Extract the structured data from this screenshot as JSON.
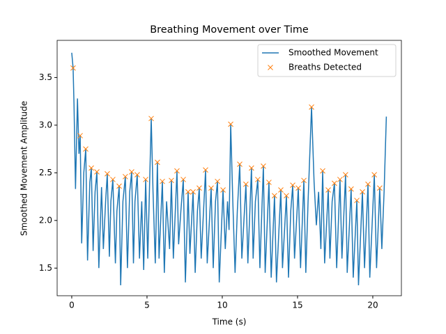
{
  "chart_data": {
    "type": "line",
    "title": "Breathing Movement over Time",
    "x_label": "Time (s)",
    "y_label": "Smoothed Movement Amplitude",
    "xlim": [
      -0.97,
      21.9
    ],
    "ylim": [
      1.21,
      3.89
    ],
    "xticks": [
      0,
      5,
      10,
      15,
      20
    ],
    "yticks": [
      1.5,
      {
        "value": 2,
        "label": "2.0"
      },
      2.5,
      {
        "value": 3,
        "label": "3.0"
      },
      3.5
    ],
    "legend": "upper right",
    "grid": false,
    "series": [
      {
        "name": "Smoothed Movement",
        "type": "line",
        "color": "#1f77b4",
        "x": [
          0,
          0.09,
          0.15,
          0.25,
          0.38,
          0.48,
          0.56,
          0.66,
          0.8,
          0.93,
          1.05,
          1.2,
          1.3,
          1.42,
          1.55,
          1.67,
          1.8,
          1.98,
          2.1,
          2.25,
          2.36,
          2.5,
          2.6,
          2.73,
          2.9,
          3.0,
          3.15,
          3.25,
          3.4,
          3.56,
          3.7,
          3.85,
          3.98,
          4.1,
          4.2,
          4.35,
          4.5,
          4.65,
          4.78,
          4.91,
          5.05,
          5.28,
          5.4,
          5.55,
          5.69,
          5.8,
          6.02,
          6.15,
          6.3,
          6.5,
          6.62,
          6.75,
          6.99,
          7.1,
          7.25,
          7.41,
          7.55,
          7.73,
          7.85,
          8.06,
          8.2,
          8.35,
          8.47,
          8.6,
          8.89,
          9.0,
          9.26,
          9.4,
          9.55,
          9.68,
          9.8,
          10.05,
          10.2,
          10.35,
          10.45,
          10.56,
          10.7,
          10.85,
          11.0,
          11.16,
          11.3,
          11.57,
          11.7,
          11.94,
          12.05,
          12.2,
          12.36,
          12.5,
          12.73,
          12.85,
          13.1,
          13.25,
          13.47,
          13.6,
          13.89,
          14.0,
          14.26,
          14.4,
          14.55,
          14.68,
          14.8,
          15.05,
          15.2,
          15.42,
          15.55,
          15.7,
          15.93,
          16.1,
          16.25,
          16.4,
          16.55,
          16.67,
          16.8,
          17.04,
          17.15,
          17.3,
          17.45,
          17.6,
          17.82,
          17.95,
          18.19,
          18.3,
          18.56,
          18.7,
          18.94,
          19.05,
          19.31,
          19.45,
          19.68,
          19.8,
          20.1,
          20.25,
          20.46,
          20.6,
          20.75,
          20.9
        ],
        "values": [
          3.76,
          3.6,
          3.22,
          2.33,
          3.28,
          2.7,
          2.89,
          1.76,
          2.5,
          2.75,
          1.58,
          2.4,
          2.55,
          1.68,
          2.3,
          2.51,
          1.5,
          2.35,
          1.7,
          2.2,
          2.49,
          1.62,
          2.2,
          2.43,
          1.55,
          2.1,
          2.36,
          1.32,
          2.2,
          2.46,
          1.5,
          2.3,
          2.51,
          1.55,
          2.2,
          2.48,
          1.6,
          2.2,
          1.48,
          2.43,
          1.6,
          3.07,
          2.3,
          1.55,
          2.61,
          1.6,
          2.41,
          1.45,
          2.2,
          1.7,
          2.42,
          1.6,
          2.52,
          1.75,
          2.1,
          2.43,
          1.35,
          2.3,
          1.65,
          2.3,
          1.45,
          2.1,
          2.34,
          1.6,
          2.53,
          1.55,
          2.34,
          1.5,
          2.2,
          2.41,
          1.35,
          2.32,
          1.7,
          2.2,
          1.9,
          3.01,
          2.2,
          1.45,
          2.1,
          2.59,
          1.6,
          2.38,
          1.55,
          2.55,
          1.6,
          2.2,
          2.43,
          1.5,
          2.57,
          1.45,
          2.4,
          1.4,
          2.26,
          1.35,
          2.32,
          1.5,
          2.26,
          1.4,
          2.1,
          2.37,
          1.6,
          2.34,
          1.5,
          2.42,
          1.45,
          2.2,
          3.19,
          2.4,
          1.95,
          2.3,
          1.7,
          2.52,
          1.55,
          2.32,
          1.6,
          2.2,
          2.39,
          1.5,
          2.43,
          1.6,
          2.48,
          1.45,
          2.33,
          1.4,
          2.21,
          1.32,
          2.3,
          1.5,
          2.38,
          1.4,
          2.48,
          1.5,
          2.34,
          1.7,
          2.3,
          3.09
        ]
      },
      {
        "name": "Breaths Detected",
        "type": "scatter",
        "marker": "x",
        "color": "#ff7f0e",
        "x": [
          0.09,
          0.56,
          0.93,
          1.3,
          1.67,
          2.36,
          2.73,
          3.15,
          3.56,
          3.98,
          4.35,
          4.91,
          5.28,
          5.69,
          6.02,
          6.62,
          6.99,
          7.41,
          7.73,
          8.06,
          8.47,
          8.89,
          9.26,
          9.68,
          10.05,
          10.56,
          11.16,
          11.57,
          11.94,
          12.36,
          12.73,
          13.1,
          13.47,
          13.89,
          14.26,
          14.68,
          15.05,
          15.42,
          15.93,
          16.67,
          17.04,
          17.45,
          17.82,
          18.19,
          18.56,
          18.94,
          19.31,
          19.68,
          20.1,
          20.46
        ],
        "values": [
          3.6,
          2.89,
          2.75,
          2.55,
          2.51,
          2.49,
          2.43,
          2.36,
          2.46,
          2.51,
          2.48,
          2.43,
          3.07,
          2.61,
          2.41,
          2.42,
          2.52,
          2.43,
          2.3,
          2.3,
          2.34,
          2.53,
          2.34,
          2.41,
          2.32,
          3.01,
          2.59,
          2.38,
          2.55,
          2.43,
          2.57,
          2.4,
          2.26,
          2.32,
          2.26,
          2.37,
          2.34,
          2.42,
          3.19,
          2.52,
          2.32,
          2.39,
          2.43,
          2.48,
          2.33,
          2.21,
          2.3,
          2.38,
          2.48,
          2.34
        ]
      }
    ]
  }
}
